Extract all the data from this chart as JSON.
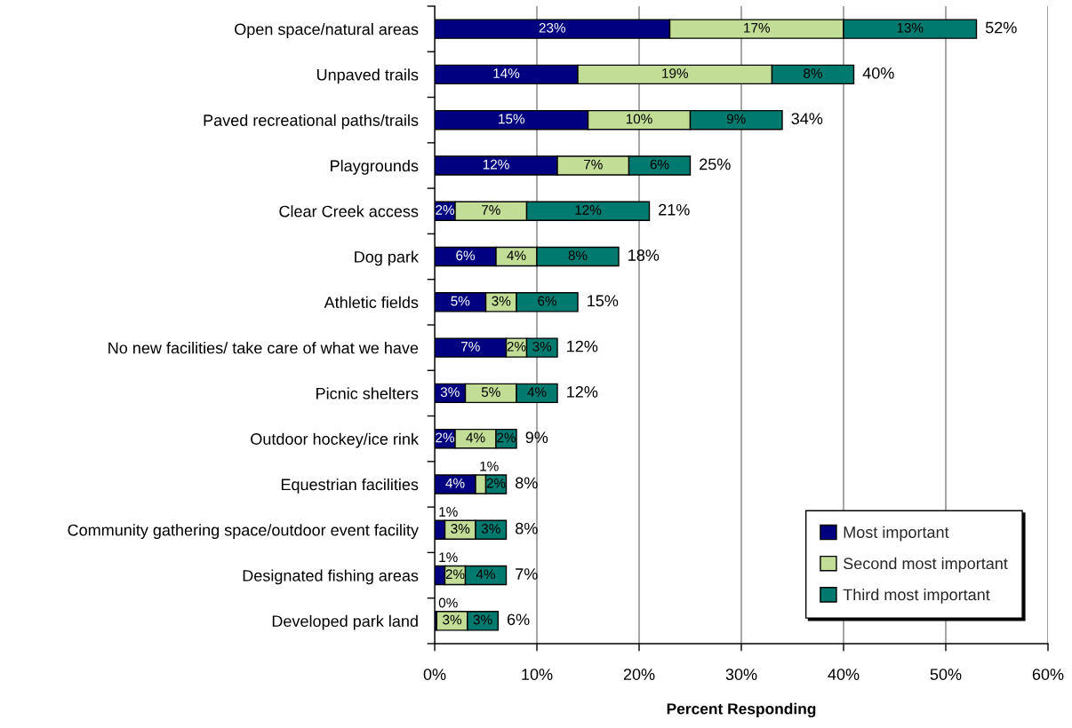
{
  "chart_data": {
    "type": "bar",
    "orientation": "horizontal",
    "stacked": true,
    "xlabel": "Percent Responding",
    "categories": [
      "Open space/natural areas",
      "Unpaved trails",
      "Paved recreational paths/trails",
      "Playgrounds",
      "Clear Creek access",
      "Dog park",
      "Athletic fields",
      "No new facilities/ take care of what we have",
      "Picnic shelters",
      "Outdoor hockey/ice rink",
      "Equestrian facilities",
      "Community gathering space/outdoor event facility",
      "Designated fishing areas",
      "Developed park land"
    ],
    "series": [
      {
        "name": "Most important",
        "color": "#000080",
        "values": [
          23,
          14,
          15,
          12,
          2,
          6,
          5,
          7,
          3,
          2,
          4,
          1,
          1,
          0.2
        ],
        "value_labels": [
          "23%",
          "14%",
          "15%",
          "12%",
          "2%",
          "6%",
          "5%",
          "7%",
          "3%",
          "2%",
          "4%",
          "1%",
          "1%",
          "0%"
        ]
      },
      {
        "name": "Second most important",
        "color": "#c1dd96",
        "values": [
          17,
          19,
          10,
          7,
          7,
          4,
          3,
          2,
          5,
          4,
          1,
          3,
          2,
          3
        ],
        "value_labels": [
          "17%",
          "19%",
          "10%",
          "7%",
          "7%",
          "4%",
          "3%",
          "2%",
          "5%",
          "4%",
          "1%",
          "3%",
          "2%",
          "3%"
        ]
      },
      {
        "name": "Third most important",
        "color": "#007a6e",
        "values": [
          13,
          8,
          9,
          6,
          12,
          8,
          6,
          3,
          4,
          2,
          2,
          3,
          4,
          3
        ],
        "value_labels": [
          "13%",
          "8%",
          "9%",
          "6%",
          "12%",
          "8%",
          "6%",
          "3%",
          "4%",
          "2%",
          "2%",
          "3%",
          "4%",
          "3%"
        ]
      }
    ],
    "totals": [
      "52%",
      "40%",
      "34%",
      "25%",
      "21%",
      "18%",
      "15%",
      "12%",
      "12%",
      "9%",
      "8%",
      "8%",
      "7%",
      "6%"
    ],
    "xlim": [
      0,
      60
    ],
    "xticks": [
      {
        "value": 0,
        "label": "0%"
      },
      {
        "value": 10,
        "label": "10%"
      },
      {
        "value": 20,
        "label": "20%"
      },
      {
        "value": 30,
        "label": "30%"
      },
      {
        "value": 40,
        "label": "40%"
      },
      {
        "value": 50,
        "label": "50%"
      },
      {
        "value": 60,
        "label": "60%"
      }
    ],
    "grid": "x",
    "legend": "bottom right"
  }
}
